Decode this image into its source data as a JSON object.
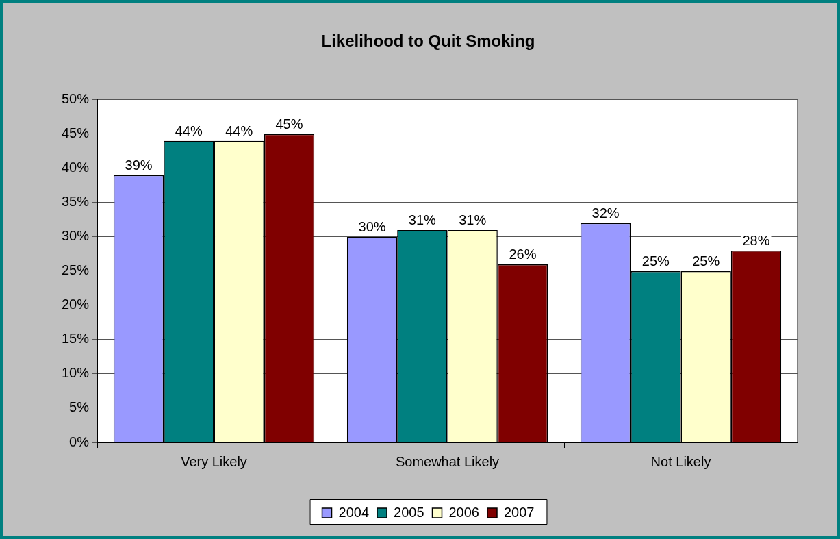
{
  "chart_data": {
    "type": "bar",
    "title": "Likelihood to Quit Smoking",
    "categories": [
      "Very Likely",
      "Somewhat Likely",
      "Not Likely"
    ],
    "series": [
      {
        "name": "2004",
        "color": "#9999ff",
        "values": [
          39,
          30,
          32
        ],
        "value_labels": [
          "39%",
          "30%",
          "32%"
        ]
      },
      {
        "name": "2005",
        "color": "#008080",
        "values": [
          44,
          31,
          25
        ],
        "value_labels": [
          "44%",
          "31%",
          "25%"
        ]
      },
      {
        "name": "2006",
        "color": "#ffffcc",
        "values": [
          44,
          31,
          25
        ],
        "value_labels": [
          "44%",
          "31%",
          "25%"
        ]
      },
      {
        "name": "2007",
        "color": "#800000",
        "values": [
          45,
          26,
          28
        ],
        "value_labels": [
          "45%",
          "26%",
          "28%"
        ]
      }
    ],
    "ylim": [
      0,
      50
    ],
    "yticks": [
      {
        "value": 0,
        "label": "0%"
      },
      {
        "value": 5,
        "label": "5%"
      },
      {
        "value": 10,
        "label": "10%"
      },
      {
        "value": 15,
        "label": "15%"
      },
      {
        "value": 20,
        "label": "20%"
      },
      {
        "value": 25,
        "label": "25%"
      },
      {
        "value": 30,
        "label": "30%"
      },
      {
        "value": 35,
        "label": "35%"
      },
      {
        "value": 40,
        "label": "40%"
      },
      {
        "value": 45,
        "label": "45%"
      },
      {
        "value": 50,
        "label": "50%"
      }
    ],
    "grid": "y",
    "legend": "bottom"
  }
}
